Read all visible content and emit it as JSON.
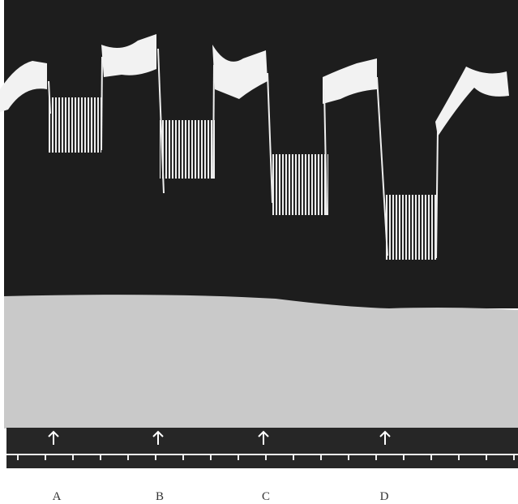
{
  "labels": [
    "A",
    "B",
    "C",
    "D"
  ]
}
